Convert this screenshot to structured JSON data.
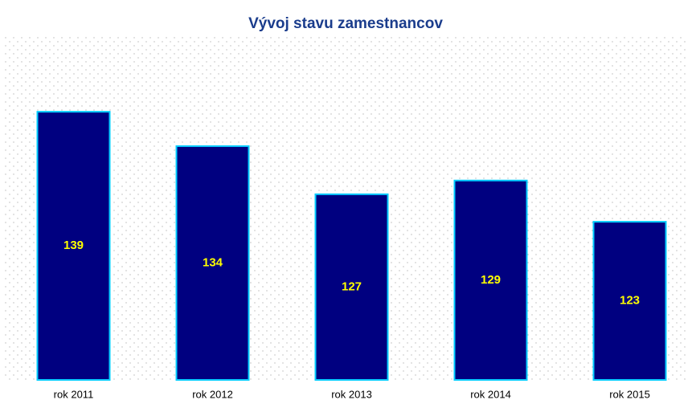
{
  "chart_data": {
    "type": "bar",
    "title": "Vývoj stavu zamestnancov",
    "categories": [
      "rok 2011",
      "rok 2012",
      "rok 2013",
      "rok 2014",
      "rok 2015"
    ],
    "values": [
      139,
      134,
      127,
      129,
      123
    ],
    "color": "#000080",
    "edge_color": "#00ccff",
    "label_color": "#ffff00",
    "ylim": [
      100,
      150
    ]
  }
}
